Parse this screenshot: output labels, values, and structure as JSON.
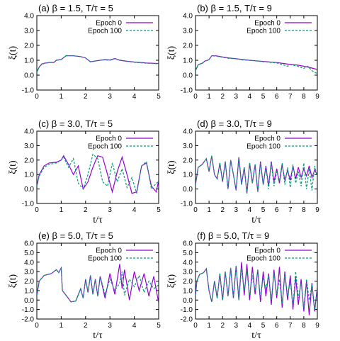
{
  "colors": {
    "epoch0": "#9400d3",
    "epoch100": "#009e73"
  },
  "chart_data": [
    {
      "type": "line",
      "title": "(a) β = 1.5, T/τ = 5",
      "xlabel": "",
      "ylabel": "ξ(t)",
      "xlim": [
        0,
        5
      ],
      "ylim": [
        -1.0,
        4.0
      ],
      "xticks": [
        "0",
        "1",
        "2",
        "3",
        "4",
        "5"
      ],
      "yticks": [
        "-1.0",
        "0.0",
        "1.0",
        "2.0",
        "3.0",
        "4.0"
      ],
      "legend_position": "top-right",
      "series": [
        {
          "name": "Epoch 0",
          "style": "solid",
          "color": "#9400d3",
          "x": [
            0,
            0.1,
            0.2,
            0.3,
            0.5,
            0.7,
            0.8,
            1.0,
            1.2,
            1.5,
            1.8,
            2.0,
            2.2,
            2.4,
            2.6,
            2.8,
            3.0,
            3.2,
            3.4,
            3.6,
            3.8,
            4.0,
            4.5,
            5.0
          ],
          "y": [
            0.2,
            0.55,
            0.75,
            0.8,
            0.85,
            0.85,
            1.0,
            1.05,
            1.3,
            1.3,
            1.25,
            1.15,
            0.9,
            0.95,
            1.0,
            1.05,
            1.02,
            1.12,
            1.0,
            0.95,
            0.92,
            0.88,
            0.82,
            0.78
          ]
        },
        {
          "name": "Epoch 100",
          "style": "dashed",
          "color": "#009e73",
          "x": [
            0,
            0.1,
            0.2,
            0.3,
            0.5,
            0.7,
            0.8,
            1.0,
            1.2,
            1.5,
            1.8,
            2.0,
            2.2,
            2.4,
            2.6,
            2.8,
            3.0,
            3.2,
            3.4,
            3.6,
            3.8,
            4.0,
            4.5,
            5.0
          ],
          "y": [
            0.2,
            0.55,
            0.72,
            0.78,
            0.85,
            0.86,
            1.0,
            1.05,
            1.32,
            1.3,
            1.25,
            1.15,
            0.88,
            0.95,
            1.0,
            1.02,
            1.0,
            1.1,
            1.02,
            0.97,
            0.9,
            0.86,
            0.8,
            0.76
          ]
        }
      ]
    },
    {
      "type": "line",
      "title": "(b) β = 1.5, T/τ = 9",
      "xlabel": "",
      "ylabel": "ξ(t)",
      "xlim": [
        0,
        9
      ],
      "ylim": [
        -1.0,
        4.0
      ],
      "xticks": [
        "0",
        "1",
        "2",
        "3",
        "4",
        "5",
        "6",
        "7",
        "8",
        "9"
      ],
      "yticks": [
        "-1.0",
        "0.0",
        "1.0",
        "2.0",
        "3.0",
        "4.0"
      ],
      "legend_position": "top-right",
      "series": [
        {
          "name": "Epoch 0",
          "style": "solid",
          "color": "#9400d3",
          "x": [
            0,
            0.2,
            0.5,
            0.7,
            0.9,
            1.0,
            1.2,
            1.5,
            2.0,
            2.5,
            3.0,
            3.5,
            4.0,
            5.0,
            6.0,
            7.0,
            7.5,
            8.0,
            8.5,
            9.0
          ],
          "y": [
            0.3,
            0.7,
            0.8,
            0.95,
            1.0,
            1.05,
            1.3,
            1.3,
            1.22,
            1.15,
            1.1,
            1.05,
            1.0,
            0.92,
            0.85,
            0.72,
            0.68,
            0.6,
            0.5,
            0.38
          ]
        },
        {
          "name": "Epoch 100",
          "style": "dashed",
          "color": "#009e73",
          "x": [
            0,
            0.2,
            0.5,
            0.7,
            0.9,
            1.0,
            1.2,
            1.5,
            2.0,
            2.5,
            3.0,
            3.5,
            4.0,
            5.0,
            6.0,
            6.8,
            7.0,
            7.5,
            8.0,
            8.3,
            8.6,
            9.0
          ],
          "y": [
            0.3,
            0.7,
            0.82,
            0.95,
            1.0,
            1.05,
            1.3,
            1.28,
            1.2,
            1.12,
            1.1,
            1.02,
            1.0,
            0.9,
            0.82,
            0.6,
            0.7,
            0.62,
            0.45,
            0.6,
            0.3,
            0.1
          ]
        }
      ]
    },
    {
      "type": "line",
      "title": "(c) β = 3.0, T/τ = 5",
      "xlabel": "t/τ",
      "ylabel": "ξ(t)",
      "xlim": [
        0,
        5
      ],
      "ylim": [
        -1.0,
        4.0
      ],
      "xticks": [
        "0",
        "1",
        "2",
        "3",
        "4",
        "5"
      ],
      "yticks": [
        "-1.0",
        "0.0",
        "1.0",
        "2.0",
        "3.0",
        "4.0"
      ],
      "legend_position": "top-right",
      "series": [
        {
          "name": "Epoch 0",
          "style": "solid",
          "color": "#9400d3",
          "x": [
            0,
            0.1,
            0.3,
            0.5,
            0.8,
            1.0,
            1.1,
            1.3,
            1.5,
            1.7,
            1.9,
            2.1,
            2.3,
            2.5,
            2.7,
            2.9,
            3.1,
            3.3,
            3.5,
            3.7,
            3.9,
            4.1,
            4.3,
            4.5,
            4.7,
            4.9,
            5.0
          ],
          "y": [
            0.2,
            1.0,
            1.6,
            1.8,
            1.85,
            2.0,
            2.3,
            1.7,
            1.0,
            1.6,
            0.0,
            0.5,
            1.5,
            2.3,
            2.2,
            1.0,
            -0.2,
            1.2,
            2.2,
            1.0,
            -0.3,
            -0.2,
            1.6,
            1.8,
            0.2,
            -0.2,
            0.6
          ]
        },
        {
          "name": "Epoch 100",
          "style": "dashed",
          "color": "#009e73",
          "x": [
            0,
            0.1,
            0.3,
            0.5,
            0.8,
            1.0,
            1.1,
            1.3,
            1.5,
            1.7,
            1.9,
            2.1,
            2.3,
            2.5,
            2.7,
            2.9,
            3.1,
            3.3,
            3.5,
            3.7,
            3.9,
            4.1,
            4.3,
            4.5,
            4.7,
            4.9,
            5.0
          ],
          "y": [
            0.2,
            0.9,
            1.5,
            1.7,
            1.8,
            2.0,
            2.2,
            1.5,
            2.1,
            0.4,
            0.0,
            1.0,
            2.4,
            2.1,
            0.5,
            0.2,
            1.8,
            0.5,
            1.4,
            0.1,
            0.8,
            -0.3,
            1.6,
            1.9,
            0.0,
            0.4,
            0.5
          ]
        }
      ]
    },
    {
      "type": "line",
      "title": "(d) β = 3.0, T/τ = 9",
      "xlabel": "t/τ",
      "ylabel": "ξ(t)",
      "xlim": [
        0,
        9
      ],
      "ylim": [
        -1.0,
        4.0
      ],
      "xticks": [
        "0",
        "1",
        "2",
        "3",
        "4",
        "5",
        "6",
        "7",
        "8",
        "9"
      ],
      "yticks": [
        "-1.0",
        "0.0",
        "1.0",
        "2.0",
        "3.0",
        "4.0"
      ],
      "legend_position": "top-right",
      "series": [
        {
          "name": "Epoch 0",
          "style": "solid",
          "color": "#9400d3",
          "x": [
            0,
            0.2,
            0.5,
            0.8,
            1.0,
            1.2,
            1.4,
            1.6,
            1.8,
            2.0,
            2.2,
            2.4,
            2.6,
            2.8,
            3.0,
            3.2,
            3.4,
            3.6,
            3.8,
            4.0,
            4.2,
            4.4,
            4.6,
            4.8,
            5.0,
            5.2,
            5.4,
            5.6,
            5.8,
            6.0,
            6.2,
            6.4,
            6.6,
            6.8,
            7.0,
            7.2,
            7.4,
            7.6,
            7.8,
            8.0,
            8.2,
            8.4,
            8.6,
            8.8,
            9.0
          ],
          "y": [
            0.3,
            1.5,
            1.7,
            2.1,
            1.2,
            2.3,
            1.0,
            0.7,
            1.8,
            0.5,
            1.9,
            0.0,
            2.0,
            1.0,
            -0.1,
            2.2,
            0.3,
            1.5,
            -0.3,
            1.8,
            0.4,
            1.7,
            -0.2,
            1.9,
            0.3,
            1.6,
            0.2,
            1.9,
            0.5,
            1.4,
            0.4,
            1.7,
            0.6,
            1.3,
            0.6,
            1.6,
            0.7,
            1.5,
            0.8,
            1.4,
            0.9,
            1.6,
            0.8,
            1.3,
            1.0
          ]
        },
        {
          "name": "Epoch 100",
          "style": "dashed",
          "color": "#009e73",
          "x": [
            0,
            0.2,
            0.5,
            0.8,
            1.0,
            1.2,
            1.4,
            1.6,
            1.8,
            2.0,
            2.2,
            2.4,
            2.6,
            2.8,
            3.0,
            3.2,
            3.4,
            3.6,
            3.8,
            4.0,
            4.2,
            4.4,
            4.6,
            4.8,
            5.0,
            5.2,
            5.4,
            5.6,
            5.8,
            6.0,
            6.2,
            6.4,
            6.6,
            6.8,
            7.0,
            7.2,
            7.4,
            7.6,
            7.8,
            8.0,
            8.2,
            8.4,
            8.6,
            8.8,
            9.0
          ],
          "y": [
            0.3,
            1.5,
            1.7,
            2.1,
            1.2,
            2.3,
            1.0,
            0.7,
            1.8,
            0.5,
            1.9,
            0.0,
            2.0,
            1.0,
            -0.1,
            2.2,
            0.3,
            1.5,
            -0.3,
            1.8,
            0.4,
            1.7,
            -0.2,
            1.8,
            0.3,
            1.5,
            0.0,
            1.8,
            0.2,
            1.2,
            0.6,
            1.8,
            0.3,
            1.5,
            0.1,
            1.7,
            0.4,
            1.2,
            0.2,
            1.8,
            0.0,
            1.4,
            -0.1,
            1.6,
            0.8
          ]
        }
      ]
    },
    {
      "type": "line",
      "title": "(e) β = 5.0, T/τ = 5",
      "xlabel": "t/τ",
      "ylabel": "ξ(t)",
      "xlim": [
        0,
        5
      ],
      "ylim": [
        -2.0,
        6.0
      ],
      "xticks": [
        "0",
        "1",
        "2",
        "3",
        "4",
        "5"
      ],
      "yticks": [
        "-2.0",
        "-1.0",
        "0.0",
        "1.0",
        "2.0",
        "3.0",
        "4.0",
        "5.0",
        "6.0"
      ],
      "legend_position": "top-right",
      "series": [
        {
          "name": "Epoch 0",
          "style": "solid",
          "color": "#9400d3",
          "x": [
            0,
            0.1,
            0.3,
            0.6,
            0.8,
            0.9,
            1.0,
            1.05,
            1.2,
            1.4,
            1.6,
            1.8,
            1.9,
            2.0,
            2.1,
            2.2,
            2.3,
            2.4,
            2.5,
            2.6,
            2.8,
            3.0,
            3.2,
            3.4,
            3.5,
            3.6,
            3.8,
            4.0,
            4.2,
            4.4,
            4.6,
            4.8,
            5.0
          ],
          "y": [
            0.5,
            2.0,
            2.6,
            2.8,
            3.2,
            2.9,
            3.4,
            1.0,
            0.5,
            -0.2,
            -0.1,
            1.2,
            0.2,
            2.2,
            0.8,
            2.6,
            0.6,
            2.2,
            0.4,
            2.5,
            0.2,
            2.8,
            0.6,
            3.8,
            1.2,
            3.2,
            0.0,
            3.0,
            1.0,
            2.8,
            0.4,
            2.5,
            -0.3
          ]
        },
        {
          "name": "Epoch 100",
          "style": "dashed",
          "color": "#009e73",
          "x": [
            0,
            0.1,
            0.3,
            0.6,
            0.8,
            0.9,
            1.0,
            1.05,
            1.2,
            1.4,
            1.6,
            1.8,
            1.9,
            2.0,
            2.1,
            2.2,
            2.3,
            2.4,
            2.5,
            2.6,
            2.8,
            3.0,
            3.2,
            3.4,
            3.5,
            3.6,
            3.8,
            4.0,
            4.2,
            4.4,
            4.6,
            4.8,
            5.0
          ],
          "y": [
            0.5,
            2.0,
            2.6,
            2.8,
            3.2,
            2.9,
            3.4,
            1.0,
            0.5,
            -0.2,
            -0.1,
            1.2,
            0.2,
            2.2,
            0.8,
            2.6,
            0.6,
            2.2,
            0.4,
            2.5,
            0.6,
            2.2,
            1.0,
            1.8,
            3.0,
            0.5,
            2.2,
            1.4,
            2.6,
            0.8,
            2.0,
            1.2,
            1.6
          ]
        }
      ]
    },
    {
      "type": "line",
      "title": "(f) β = 5.0, T/τ = 9",
      "xlabel": "t/τ",
      "ylabel": "ξ(t)",
      "xlim": [
        0,
        9
      ],
      "ylim": [
        -2.0,
        6.0
      ],
      "xticks": [
        "0",
        "1",
        "2",
        "3",
        "4",
        "5",
        "6",
        "7",
        "8",
        "9"
      ],
      "yticks": [
        "-2.0",
        "-1.0",
        "0.0",
        "1.0",
        "2.0",
        "3.0",
        "4.0",
        "5.0",
        "6.0"
      ],
      "legend_position": "top-right",
      "series": [
        {
          "name": "Epoch 0",
          "style": "solid",
          "color": "#9400d3",
          "x": [
            0,
            0.1,
            0.3,
            0.6,
            0.8,
            1.0,
            1.2,
            1.4,
            1.6,
            1.8,
            2.0,
            2.2,
            2.4,
            2.6,
            2.8,
            3.0,
            3.2,
            3.4,
            3.6,
            3.8,
            4.0,
            4.2,
            4.4,
            4.6,
            4.8,
            5.0,
            5.2,
            5.4,
            5.6,
            5.8,
            6.0,
            6.2,
            6.4,
            6.6,
            6.8,
            7.0,
            7.2,
            7.4,
            7.6,
            7.8,
            8.0,
            8.2,
            8.4,
            8.6,
            8.8,
            9.0
          ],
          "y": [
            0.5,
            2.0,
            2.7,
            2.9,
            3.3,
            1.0,
            -0.2,
            2.0,
            0.2,
            2.8,
            0.0,
            3.0,
            0.4,
            3.4,
            0.2,
            3.6,
            0.0,
            4.0,
            0.5,
            3.8,
            0.0,
            3.5,
            0.6,
            3.2,
            -0.2,
            3.0,
            0.4,
            2.8,
            -0.5,
            3.2,
            0.2,
            3.5,
            -0.8,
            3.0,
            0.0,
            2.6,
            -1.0,
            2.4,
            -0.5,
            2.2,
            -1.2,
            2.0,
            -1.6,
            1.8,
            -1.2,
            1.4
          ]
        },
        {
          "name": "Epoch 100",
          "style": "dashed",
          "color": "#009e73",
          "x": [
            0,
            0.1,
            0.3,
            0.6,
            0.8,
            1.0,
            1.2,
            1.4,
            1.6,
            1.8,
            2.0,
            2.2,
            2.4,
            2.6,
            2.8,
            3.0,
            3.2,
            3.4,
            3.6,
            3.8,
            4.0,
            4.2,
            4.4,
            4.6,
            4.8,
            5.0,
            5.2,
            5.4,
            5.6,
            5.8,
            6.0,
            6.2,
            6.4,
            6.6,
            6.8,
            7.0,
            7.2,
            7.4,
            7.6,
            7.8,
            8.0,
            8.2,
            8.4,
            8.6,
            8.8,
            9.0
          ],
          "y": [
            0.5,
            2.0,
            2.7,
            2.9,
            3.3,
            1.0,
            -0.2,
            2.0,
            0.2,
            2.8,
            0.0,
            3.0,
            0.4,
            3.4,
            0.2,
            3.6,
            0.0,
            3.4,
            1.0,
            3.0,
            0.5,
            2.6,
            1.0,
            3.2,
            0.2,
            2.4,
            1.2,
            2.6,
            0.0,
            2.8,
            0.6,
            2.2,
            -0.4,
            2.8,
            0.4,
            2.0,
            -0.6,
            3.0,
            0.2,
            1.8,
            -0.8,
            2.2,
            0.0,
            1.6,
            -1.0,
            1.2
          ]
        }
      ]
    }
  ]
}
